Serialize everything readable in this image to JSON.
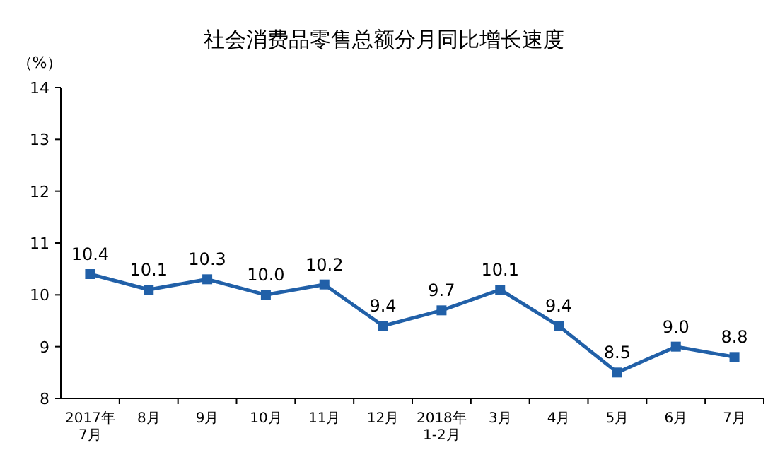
{
  "chart_data": {
    "type": "line",
    "title": "社会消费品零售总额分月同比增长速度",
    "ylabel": "（%）",
    "categories": [
      "2017年\n7月",
      "8月",
      "9月",
      "10月",
      "11月",
      "12月",
      "2018年\n1-2月",
      "3月",
      "4月",
      "5月",
      "6月",
      "7月"
    ],
    "series": [
      {
        "color": "#2160a8",
        "values": [
          10.4,
          10.1,
          10.3,
          10.0,
          10.2,
          9.4,
          9.7,
          10.1,
          9.4,
          8.5,
          9.0,
          8.8
        ],
        "value_labels": [
          "10.4",
          "10.1",
          "10.3",
          "10.0",
          "10.2",
          "9.4",
          "9.7",
          "10.1",
          "9.4",
          "8.5",
          "9.0",
          "8.8"
        ]
      }
    ],
    "ylim": [
      8,
      14
    ],
    "yticks": [
      8,
      9,
      10,
      11,
      12,
      13,
      14
    ],
    "marker": "square",
    "line_style": "solid"
  }
}
